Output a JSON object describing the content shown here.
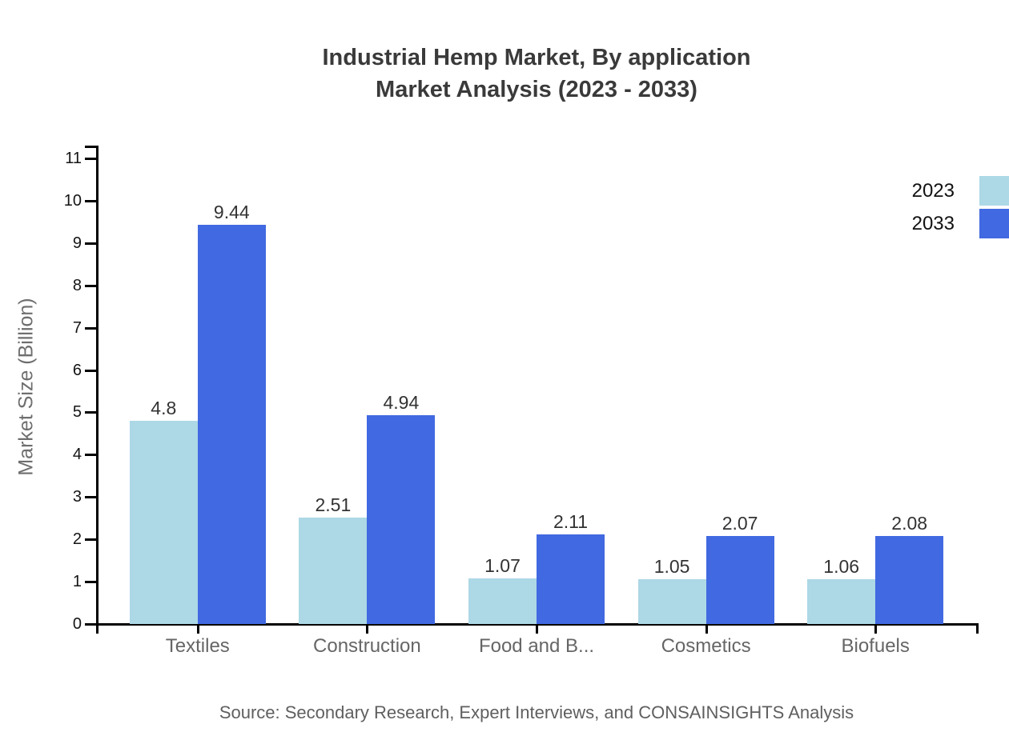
{
  "title": {
    "line1": "Industrial Hemp Market, By application",
    "line2": "Market Analysis (2023 - 2033)"
  },
  "source_note": "Source: Secondary Research, Expert Interviews, and CONSAINSIGHTS Analysis",
  "colors": {
    "series_2023": "#ADD8E6",
    "series_2033": "#4169E1",
    "axis": "#000000",
    "title_text": "#3a3a3a",
    "category_text": "#666666",
    "value_text": "#333333",
    "source_text": "#5f5f5f"
  },
  "legend": {
    "position": "top-right",
    "items": [
      {
        "label": "2023",
        "color": "#ADD8E6"
      },
      {
        "label": "2033",
        "color": "#4169E1"
      }
    ]
  },
  "chart_data": {
    "type": "bar",
    "title": "Industrial Hemp Market, By application Market Analysis (2023 - 2033)",
    "categories": [
      "Textiles",
      "Construction",
      "Food and B...",
      "Cosmetics",
      "Biofuels"
    ],
    "series": [
      {
        "name": "2023",
        "color": "#ADD8E6",
        "values": [
          4.8,
          2.51,
          1.07,
          1.05,
          1.06
        ]
      },
      {
        "name": "2033",
        "color": "#4169E1",
        "values": [
          9.44,
          4.94,
          2.11,
          2.07,
          2.08
        ]
      }
    ],
    "value_labels": [
      [
        "4.8",
        "2.51",
        "1.07",
        "1.05",
        "1.06"
      ],
      [
        "9.44",
        "4.94",
        "2.11",
        "2.07",
        "2.08"
      ]
    ],
    "xlabel": "",
    "ylabel": "Market Size (Billion)",
    "ylim": [
      0,
      11
    ],
    "ytick_step": 1,
    "yticks": [
      0,
      1,
      2,
      3,
      4,
      5,
      6,
      7,
      8,
      9,
      10,
      11
    ],
    "grid": false,
    "legend_position": "top-right",
    "show_value_labels": true
  }
}
